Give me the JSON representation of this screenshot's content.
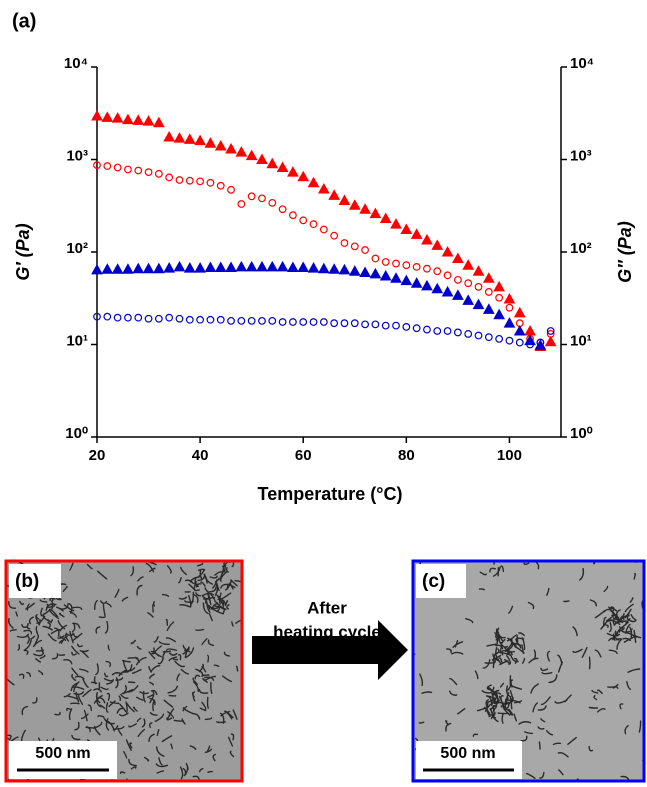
{
  "figure_label": "(a)",
  "chart_data": {
    "type": "scatter",
    "xlabel": "Temperature (°C)",
    "ylabel": "G′ (Pa)",
    "y2label": "G″ (Pa)",
    "log_y": true,
    "xlim": [
      20,
      110
    ],
    "xticks": [
      20,
      40,
      60,
      80,
      100
    ],
    "ylim": [
      1,
      10000
    ],
    "yticks": [
      {
        "value": 1,
        "label": "10⁰"
      },
      {
        "value": 10,
        "label": "10¹"
      },
      {
        "value": 100,
        "label": "10²"
      },
      {
        "value": 1000,
        "label": "10³"
      },
      {
        "value": 10000,
        "label": "10⁴"
      }
    ],
    "y2lim": [
      1,
      10000
    ],
    "y2ticks": [
      {
        "value": 1,
        "label": "10⁰"
      },
      {
        "value": 10,
        "label": "10¹"
      },
      {
        "value": 100,
        "label": "10²"
      },
      {
        "value": 1000,
        "label": "10³"
      },
      {
        "value": 10000,
        "label": "10⁴"
      }
    ],
    "series": [
      {
        "color": "#ff0000",
        "marker": "triangle",
        "filled": true,
        "x": [
          20,
          22,
          24,
          26,
          28,
          30,
          32,
          34,
          36,
          38,
          40,
          42,
          44,
          46,
          48,
          50,
          52,
          54,
          56,
          58,
          60,
          62,
          64,
          66,
          68,
          70,
          72,
          74,
          76,
          78,
          80,
          82,
          84,
          86,
          88,
          90,
          92,
          94,
          96,
          98,
          100,
          102,
          104,
          106,
          108
        ],
        "values": [
          2950,
          2850,
          2800,
          2700,
          2650,
          2600,
          2500,
          1750,
          1700,
          1650,
          1600,
          1500,
          1400,
          1300,
          1200,
          1100,
          1000,
          900,
          820,
          730,
          650,
          560,
          480,
          410,
          360,
          320,
          290,
          260,
          230,
          200,
          175,
          155,
          135,
          118,
          100,
          85,
          72,
          62,
          52,
          42,
          31,
          22,
          14,
          9.5,
          10.7
        ]
      },
      {
        "color": "#ff0000",
        "marker": "circle",
        "filled": false,
        "axis": "y2",
        "x": [
          20,
          22,
          24,
          26,
          28,
          30,
          32,
          34,
          36,
          38,
          40,
          42,
          44,
          46,
          48,
          50,
          52,
          54,
          56,
          58,
          60,
          62,
          64,
          66,
          68,
          70,
          72,
          74,
          76,
          78,
          80,
          82,
          84,
          86,
          88,
          90,
          92,
          94,
          96,
          98,
          100,
          102,
          104,
          106,
          108
        ],
        "values": [
          870,
          850,
          820,
          780,
          760,
          730,
          700,
          640,
          600,
          590,
          580,
          560,
          520,
          470,
          330,
          400,
          380,
          340,
          290,
          250,
          220,
          200,
          175,
          150,
          125,
          115,
          105,
          85,
          78,
          75,
          72,
          69,
          66,
          62,
          56,
          50,
          46,
          42,
          37,
          32,
          25,
          17,
          11.5,
          10.5,
          13
        ]
      },
      {
        "color": "#0000cc",
        "marker": "triangle",
        "filled": true,
        "x": [
          20,
          22,
          24,
          26,
          28,
          30,
          32,
          34,
          36,
          38,
          40,
          42,
          44,
          46,
          48,
          50,
          52,
          54,
          56,
          58,
          60,
          62,
          64,
          66,
          68,
          70,
          72,
          74,
          76,
          78,
          80,
          82,
          84,
          86,
          88,
          90,
          92,
          94,
          96,
          98,
          100,
          102,
          104,
          106
        ],
        "values": [
          64,
          65,
          65,
          65,
          66,
          66,
          66,
          67,
          69,
          67,
          67,
          68,
          68,
          68,
          69,
          69,
          69,
          69,
          69,
          68,
          68,
          67,
          66,
          65,
          64,
          62,
          60,
          58,
          55,
          52,
          49,
          46,
          43,
          40,
          37,
          34,
          30,
          27,
          24,
          21,
          17,
          14,
          11,
          9.8
        ]
      },
      {
        "color": "#0000cc",
        "marker": "circle",
        "filled": false,
        "axis": "y2",
        "x": [
          20,
          22,
          24,
          26,
          28,
          30,
          32,
          34,
          36,
          38,
          40,
          42,
          44,
          46,
          48,
          50,
          52,
          54,
          56,
          58,
          60,
          62,
          64,
          66,
          68,
          70,
          72,
          74,
          76,
          78,
          80,
          82,
          84,
          86,
          88,
          90,
          92,
          94,
          96,
          98,
          100,
          102,
          104,
          106,
          108
        ],
        "values": [
          20,
          20,
          19.5,
          19.5,
          19.5,
          19,
          19,
          19.5,
          19,
          18.5,
          18.5,
          18.5,
          18.5,
          18,
          18,
          18,
          18,
          18,
          17.5,
          17.5,
          17.5,
          17.5,
          17.5,
          17,
          17,
          17,
          16.5,
          16.5,
          16,
          16,
          15.5,
          15,
          14.5,
          14,
          14,
          13.5,
          13,
          12.5,
          12,
          11.5,
          11,
          10.5,
          10,
          10.5,
          14
        ]
      }
    ]
  },
  "panels": [
    {
      "label": "(b)",
      "scale_bar": "500 nm"
    },
    {
      "label": "(c)",
      "scale_bar": "500 nm"
    }
  ],
  "arrow_text": [
    "After",
    "heating cycle"
  ]
}
